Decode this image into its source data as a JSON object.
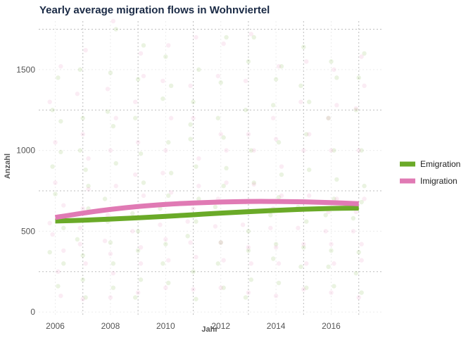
{
  "chart_data": {
    "type": "scatter",
    "title": "Yearly average migration flows in Wohnviertel",
    "xlabel": "Jahr",
    "ylabel": "Anzahl",
    "xlim": [
      2005.4,
      2017.9
    ],
    "ylim": [
      -30,
      1800
    ],
    "x_ticks": [
      2006,
      2008,
      2010,
      2012,
      2014,
      2016
    ],
    "y_ticks": [
      0,
      500,
      1000,
      1500
    ],
    "legend_position": "right",
    "grid": true,
    "series": [
      {
        "name": "Emigration",
        "color": "#6aaa28",
        "trend": {
          "x": [
            2006,
            2007,
            2008,
            2009,
            2010,
            2011,
            2012,
            2013,
            2014,
            2015,
            2016,
            2017
          ],
          "y": [
            563,
            568,
            575,
            583,
            592,
            602,
            612,
            621,
            629,
            636,
            641,
            643
          ]
        },
        "points": [
          [
            2006.1,
            1450
          ],
          [
            2005.9,
            1250
          ],
          [
            2006.2,
            990
          ],
          [
            2006.0,
            730
          ],
          [
            2006.3,
            520
          ],
          [
            2005.8,
            370
          ],
          [
            2006.1,
            160
          ],
          [
            2006.2,
            1180
          ],
          [
            2005.9,
            900
          ],
          [
            2006.3,
            300
          ],
          [
            2007.0,
            1200
          ],
          [
            2006.9,
            1000
          ],
          [
            2007.1,
            880
          ],
          [
            2007.2,
            640
          ],
          [
            2006.8,
            450
          ],
          [
            2007.0,
            200
          ],
          [
            2007.1,
            90
          ],
          [
            2006.9,
            1500
          ],
          [
            2007.2,
            780
          ],
          [
            2007.0,
            350
          ],
          [
            2008.0,
            1480
          ],
          [
            2007.9,
            1240
          ],
          [
            2008.1,
            1150
          ],
          [
            2008.2,
            920
          ],
          [
            2007.8,
            700
          ],
          [
            2008.0,
            430
          ],
          [
            2008.1,
            150
          ],
          [
            2008.2,
            1750
          ],
          [
            2007.9,
            560
          ],
          [
            2008.1,
            300
          ],
          [
            2009.0,
            1440
          ],
          [
            2008.9,
            1200
          ],
          [
            2009.1,
            980
          ],
          [
            2009.2,
            800
          ],
          [
            2008.8,
            610
          ],
          [
            2009.0,
            380
          ],
          [
            2009.1,
            200
          ],
          [
            2009.2,
            1650
          ],
          [
            2008.9,
            90
          ],
          [
            2009.0,
            500
          ],
          [
            2010.0,
            1580
          ],
          [
            2009.9,
            1320
          ],
          [
            2010.1,
            1050
          ],
          [
            2010.2,
            860
          ],
          [
            2009.8,
            640
          ],
          [
            2010.0,
            420
          ],
          [
            2010.1,
            180
          ],
          [
            2010.2,
            1400
          ],
          [
            2009.9,
            300
          ],
          [
            2010.1,
            720
          ],
          [
            2011.0,
            1300
          ],
          [
            2010.9,
            1070
          ],
          [
            2011.1,
            900
          ],
          [
            2011.2,
            700
          ],
          [
            2010.8,
            470
          ],
          [
            2011.0,
            250
          ],
          [
            2011.1,
            80
          ],
          [
            2011.2,
            1500
          ],
          [
            2010.9,
            1160
          ],
          [
            2011.1,
            560
          ],
          [
            2012.0,
            1420
          ],
          [
            2011.9,
            1200
          ],
          [
            2012.1,
            1080
          ],
          [
            2012.2,
            890
          ],
          [
            2011.8,
            650
          ],
          [
            2012.0,
            430
          ],
          [
            2012.1,
            150
          ],
          [
            2012.2,
            1700
          ],
          [
            2011.9,
            300
          ],
          [
            2012.1,
            780
          ],
          [
            2013.0,
            1550
          ],
          [
            2012.9,
            1250
          ],
          [
            2013.1,
            1000
          ],
          [
            2013.2,
            800
          ],
          [
            2012.8,
            620
          ],
          [
            2013.0,
            380
          ],
          [
            2013.1,
            200
          ],
          [
            2013.2,
            1700
          ],
          [
            2012.9,
            90
          ],
          [
            2013.0,
            500
          ],
          [
            2014.0,
            1440
          ],
          [
            2013.9,
            1280
          ],
          [
            2014.1,
            1050
          ],
          [
            2014.2,
            850
          ],
          [
            2013.8,
            600
          ],
          [
            2014.0,
            420
          ],
          [
            2014.1,
            180
          ],
          [
            2014.2,
            1520
          ],
          [
            2013.9,
            330
          ],
          [
            2014.1,
            710
          ],
          [
            2015.0,
            1640
          ],
          [
            2014.9,
            1400
          ],
          [
            2015.1,
            1100
          ],
          [
            2015.2,
            880
          ],
          [
            2014.8,
            650
          ],
          [
            2015.0,
            400
          ],
          [
            2015.1,
            150
          ],
          [
            2015.2,
            1300
          ],
          [
            2014.9,
            280
          ],
          [
            2015.1,
            560
          ],
          [
            2016.0,
            1550
          ],
          [
            2015.9,
            1200
          ],
          [
            2016.1,
            1000
          ],
          [
            2016.2,
            820
          ],
          [
            2015.8,
            600
          ],
          [
            2016.0,
            380
          ],
          [
            2016.1,
            160
          ],
          [
            2016.2,
            1450
          ],
          [
            2015.9,
            280
          ],
          [
            2016.1,
            700
          ],
          [
            2017.0,
            1450
          ],
          [
            2016.9,
            1250
          ],
          [
            2017.1,
            1000
          ],
          [
            2017.2,
            780
          ],
          [
            2016.8,
            580
          ],
          [
            2017.0,
            370
          ],
          [
            2017.1,
            120
          ],
          [
            2017.2,
            1600
          ],
          [
            2016.9,
            240
          ],
          [
            2017.1,
            680
          ]
        ]
      },
      {
        "name": "Imigration",
        "color": "#e07ab4",
        "trend": {
          "x": [
            2006,
            2007,
            2008,
            2009,
            2010,
            2011,
            2012,
            2013,
            2014,
            2015,
            2016,
            2017
          ],
          "y": [
            585,
            612,
            635,
            653,
            666,
            675,
            681,
            684,
            684,
            682,
            677,
            670
          ]
        },
        "points": [
          [
            2006.2,
            1520
          ],
          [
            2005.8,
            1300
          ],
          [
            2006.0,
            800
          ],
          [
            2006.3,
            660
          ],
          [
            2005.9,
            480
          ],
          [
            2006.1,
            250
          ],
          [
            2006.2,
            100
          ],
          [
            2006.0,
            1050
          ],
          [
            2005.8,
            550
          ],
          [
            2006.3,
            380
          ],
          [
            2007.1,
            1620
          ],
          [
            2006.8,
            1350
          ],
          [
            2007.0,
            1100
          ],
          [
            2007.2,
            760
          ],
          [
            2006.9,
            520
          ],
          [
            2007.1,
            300
          ],
          [
            2007.0,
            80
          ],
          [
            2007.2,
            950
          ],
          [
            2006.9,
            420
          ],
          [
            2007.0,
            640
          ],
          [
            2008.1,
            1800
          ],
          [
            2007.9,
            1380
          ],
          [
            2008.0,
            1000
          ],
          [
            2008.2,
            780
          ],
          [
            2007.8,
            440
          ],
          [
            2008.1,
            240
          ],
          [
            2008.0,
            90
          ],
          [
            2008.2,
            1200
          ],
          [
            2007.9,
            600
          ],
          [
            2008.0,
            360
          ],
          [
            2009.1,
            1600
          ],
          [
            2008.9,
            1300
          ],
          [
            2009.0,
            1050
          ],
          [
            2009.2,
            720
          ],
          [
            2008.8,
            500
          ],
          [
            2009.1,
            300
          ],
          [
            2009.0,
            120
          ],
          [
            2009.2,
            1460
          ],
          [
            2008.9,
            850
          ],
          [
            2009.1,
            400
          ],
          [
            2010.1,
            1650
          ],
          [
            2009.9,
            1430
          ],
          [
            2010.0,
            1000
          ],
          [
            2010.2,
            740
          ],
          [
            2009.8,
            540
          ],
          [
            2010.1,
            320
          ],
          [
            2010.0,
            150
          ],
          [
            2010.2,
            1200
          ],
          [
            2009.9,
            860
          ],
          [
            2010.0,
            450
          ],
          [
            2011.1,
            1700
          ],
          [
            2010.9,
            1400
          ],
          [
            2011.0,
            1200
          ],
          [
            2011.2,
            780
          ],
          [
            2010.8,
            560
          ],
          [
            2011.1,
            340
          ],
          [
            2011.0,
            140
          ],
          [
            2011.2,
            950
          ],
          [
            2010.9,
            430
          ],
          [
            2011.0,
            640
          ],
          [
            2012.1,
            1660
          ],
          [
            2011.9,
            1460
          ],
          [
            2012.0,
            1100
          ],
          [
            2012.2,
            800
          ],
          [
            2011.8,
            530
          ],
          [
            2012.1,
            320
          ],
          [
            2012.0,
            150
          ],
          [
            2012.2,
            1000
          ],
          [
            2011.9,
            700
          ],
          [
            2012.0,
            430
          ],
          [
            2013.1,
            1720
          ],
          [
            2012.9,
            1430
          ],
          [
            2013.0,
            1100
          ],
          [
            2013.2,
            790
          ],
          [
            2012.8,
            540
          ],
          [
            2013.1,
            300
          ],
          [
            2013.0,
            120
          ],
          [
            2013.2,
            1000
          ],
          [
            2012.9,
            680
          ],
          [
            2013.0,
            400
          ],
          [
            2014.1,
            1520
          ],
          [
            2013.9,
            1200
          ],
          [
            2014.0,
            1070
          ],
          [
            2014.2,
            720
          ],
          [
            2013.8,
            520
          ],
          [
            2014.1,
            300
          ],
          [
            2014.0,
            100
          ],
          [
            2014.2,
            900
          ],
          [
            2013.9,
            640
          ],
          [
            2014.0,
            400
          ],
          [
            2015.1,
            1550
          ],
          [
            2014.9,
            1300
          ],
          [
            2015.0,
            1000
          ],
          [
            2015.2,
            720
          ],
          [
            2014.8,
            520
          ],
          [
            2015.1,
            300
          ],
          [
            2015.0,
            140
          ],
          [
            2015.2,
            1100
          ],
          [
            2014.9,
            630
          ],
          [
            2015.0,
            420
          ],
          [
            2016.1,
            1500
          ],
          [
            2015.9,
            1200
          ],
          [
            2016.0,
            1000
          ],
          [
            2016.2,
            700
          ],
          [
            2015.8,
            500
          ],
          [
            2016.1,
            300
          ],
          [
            2016.0,
            120
          ],
          [
            2016.2,
            1280
          ],
          [
            2015.9,
            620
          ],
          [
            2016.0,
            420
          ],
          [
            2017.1,
            1580
          ],
          [
            2016.9,
            1260
          ],
          [
            2017.0,
            1000
          ],
          [
            2017.2,
            700
          ],
          [
            2016.8,
            500
          ],
          [
            2017.1,
            320
          ],
          [
            2017.0,
            90
          ],
          [
            2017.2,
            1400
          ],
          [
            2016.9,
            620
          ],
          [
            2017.1,
            420
          ]
        ]
      }
    ]
  }
}
